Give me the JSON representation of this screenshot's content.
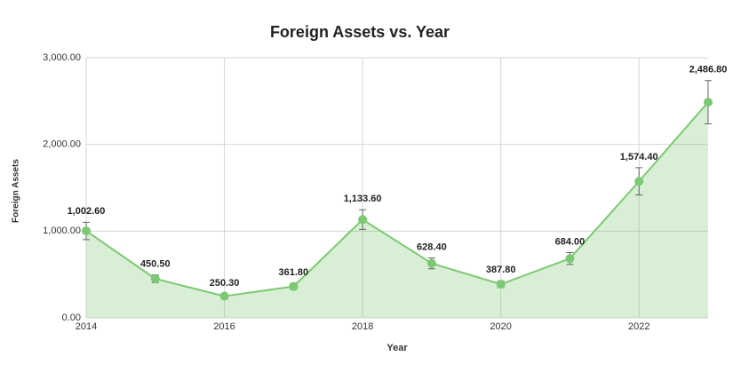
{
  "chart_data": {
    "type": "area",
    "title": "Foreign Assets vs. Year",
    "x_label": "Year",
    "y_label": "Foreign Assets",
    "x": [
      2014,
      2015,
      2016,
      2017,
      2018,
      2019,
      2020,
      2021,
      2022,
      2023
    ],
    "series": [
      {
        "name": "Foreign Assets",
        "color": "#7dc873",
        "values": [
          1002.6,
          450.5,
          250.3,
          361.8,
          1133.6,
          628.4,
          387.8,
          684.0,
          1574.4,
          2486.8
        ],
        "value_labels": [
          "1,002.60",
          "450.50",
          "250.30",
          "361.80",
          "1,133.60",
          "628.40",
          "387.80",
          "684.00",
          "1,574.40",
          "2,486.80"
        ],
        "errors": [
          100,
          45,
          25,
          36,
          113,
          63,
          39,
          68,
          157,
          249
        ]
      }
    ],
    "xlim": [
      2014,
      2023
    ],
    "xticks": [
      2014,
      2016,
      2018,
      2020,
      2022
    ],
    "ylim": [
      0,
      3000
    ],
    "yticks": [
      {
        "value": 0,
        "label": "0.00"
      },
      {
        "value": 1000,
        "label": "1,000.00"
      },
      {
        "value": 2000,
        "label": "2,000.00"
      },
      {
        "value": 3000,
        "label": "3,000.00"
      }
    ],
    "grid": true
  }
}
